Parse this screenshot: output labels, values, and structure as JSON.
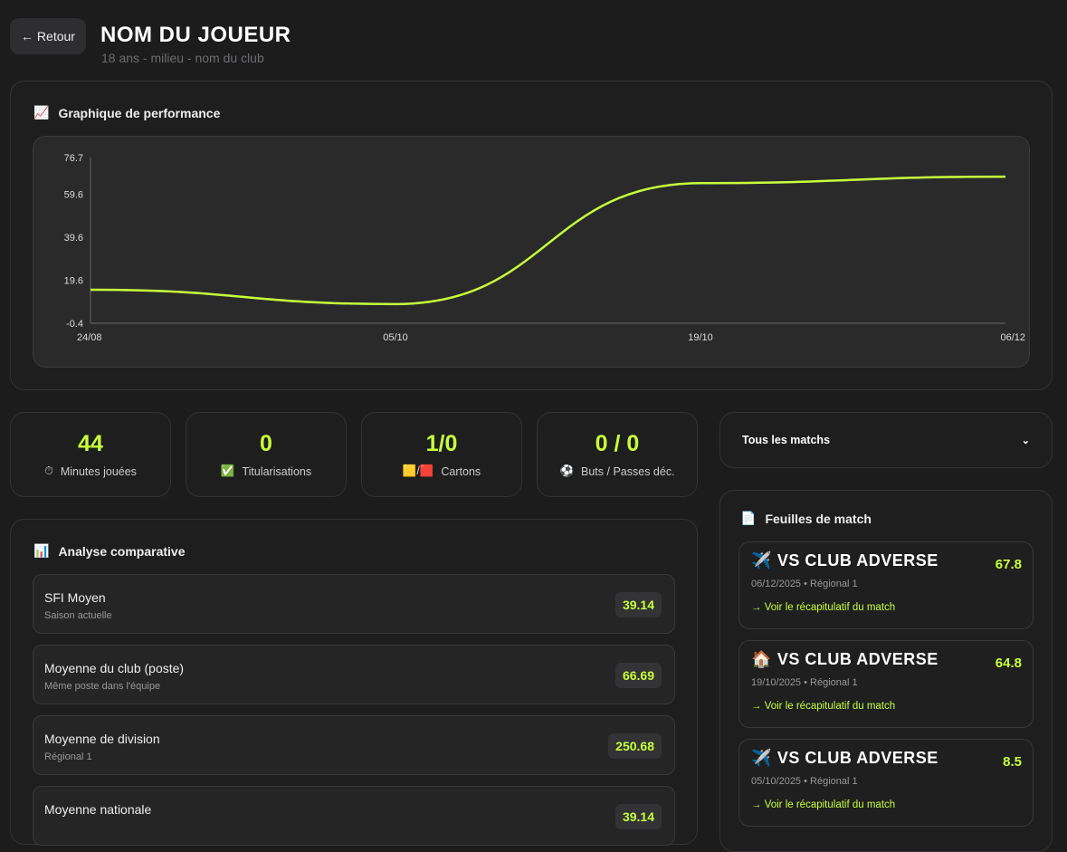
{
  "header": {
    "back_label": "← Retour",
    "title": "NOM DU JOUEUR",
    "subtitle": "18 ans - milieu - nom du club"
  },
  "performance": {
    "title": "Graphique de performance",
    "icon": "📈"
  },
  "chart_data": {
    "type": "line",
    "x": [
      "24/08",
      "05/10",
      "19/10",
      "06/12"
    ],
    "values": [
      15.2,
      8.5,
      64.8,
      67.8
    ],
    "yticks": [
      -0.4,
      19.6,
      39.6,
      59.6,
      76.7
    ],
    "ylim": [
      -0.4,
      76.7
    ],
    "color": "#c8ff3c",
    "title": "",
    "xlabel": "",
    "ylabel": ""
  },
  "stats": [
    {
      "value": "44",
      "icon": "⏱",
      "label": "Minutes jouées"
    },
    {
      "value": "0",
      "icon": "✅",
      "label": "Titularisations"
    },
    {
      "value": "1/0",
      "icon": "🟨/🟥",
      "label": "Cartons"
    },
    {
      "value": "0 / 0",
      "icon": "⚽",
      "label": "Buts / Passes déc."
    }
  ],
  "filter": {
    "selected": "Tous les matchs"
  },
  "comparison": {
    "title": "Analyse comparative",
    "icon": "📊",
    "items": [
      {
        "name": "SFI Moyen",
        "desc": "Saison actuelle",
        "value": "39.14"
      },
      {
        "name": "Moyenne du club (poste)",
        "desc": "Même poste dans l'équipe",
        "value": "66.69"
      },
      {
        "name": "Moyenne de division",
        "desc": "Régional 1",
        "value": "250.68"
      },
      {
        "name": "Moyenne nationale",
        "desc": "",
        "value": "39.14"
      }
    ]
  },
  "matches": {
    "title": "Feuilles de match",
    "icon": "📄",
    "items": [
      {
        "icon": "✈️",
        "title": "VS CLUB ADVERSE",
        "score": "67.8",
        "meta": "06/12/2025 • Régional 1",
        "link": "→ Voir le récapitulatif du match"
      },
      {
        "icon": "🏠",
        "title": "VS CLUB ADVERSE",
        "score": "64.8",
        "meta": "19/10/2025 • Régional 1",
        "link": "→ Voir le récapitulatif du match"
      },
      {
        "icon": "✈️",
        "title": "VS CLUB ADVERSE",
        "score": "8.5",
        "meta": "05/10/2025 • Régional 1",
        "link": "→ Voir le récapitulatif du match"
      }
    ]
  }
}
